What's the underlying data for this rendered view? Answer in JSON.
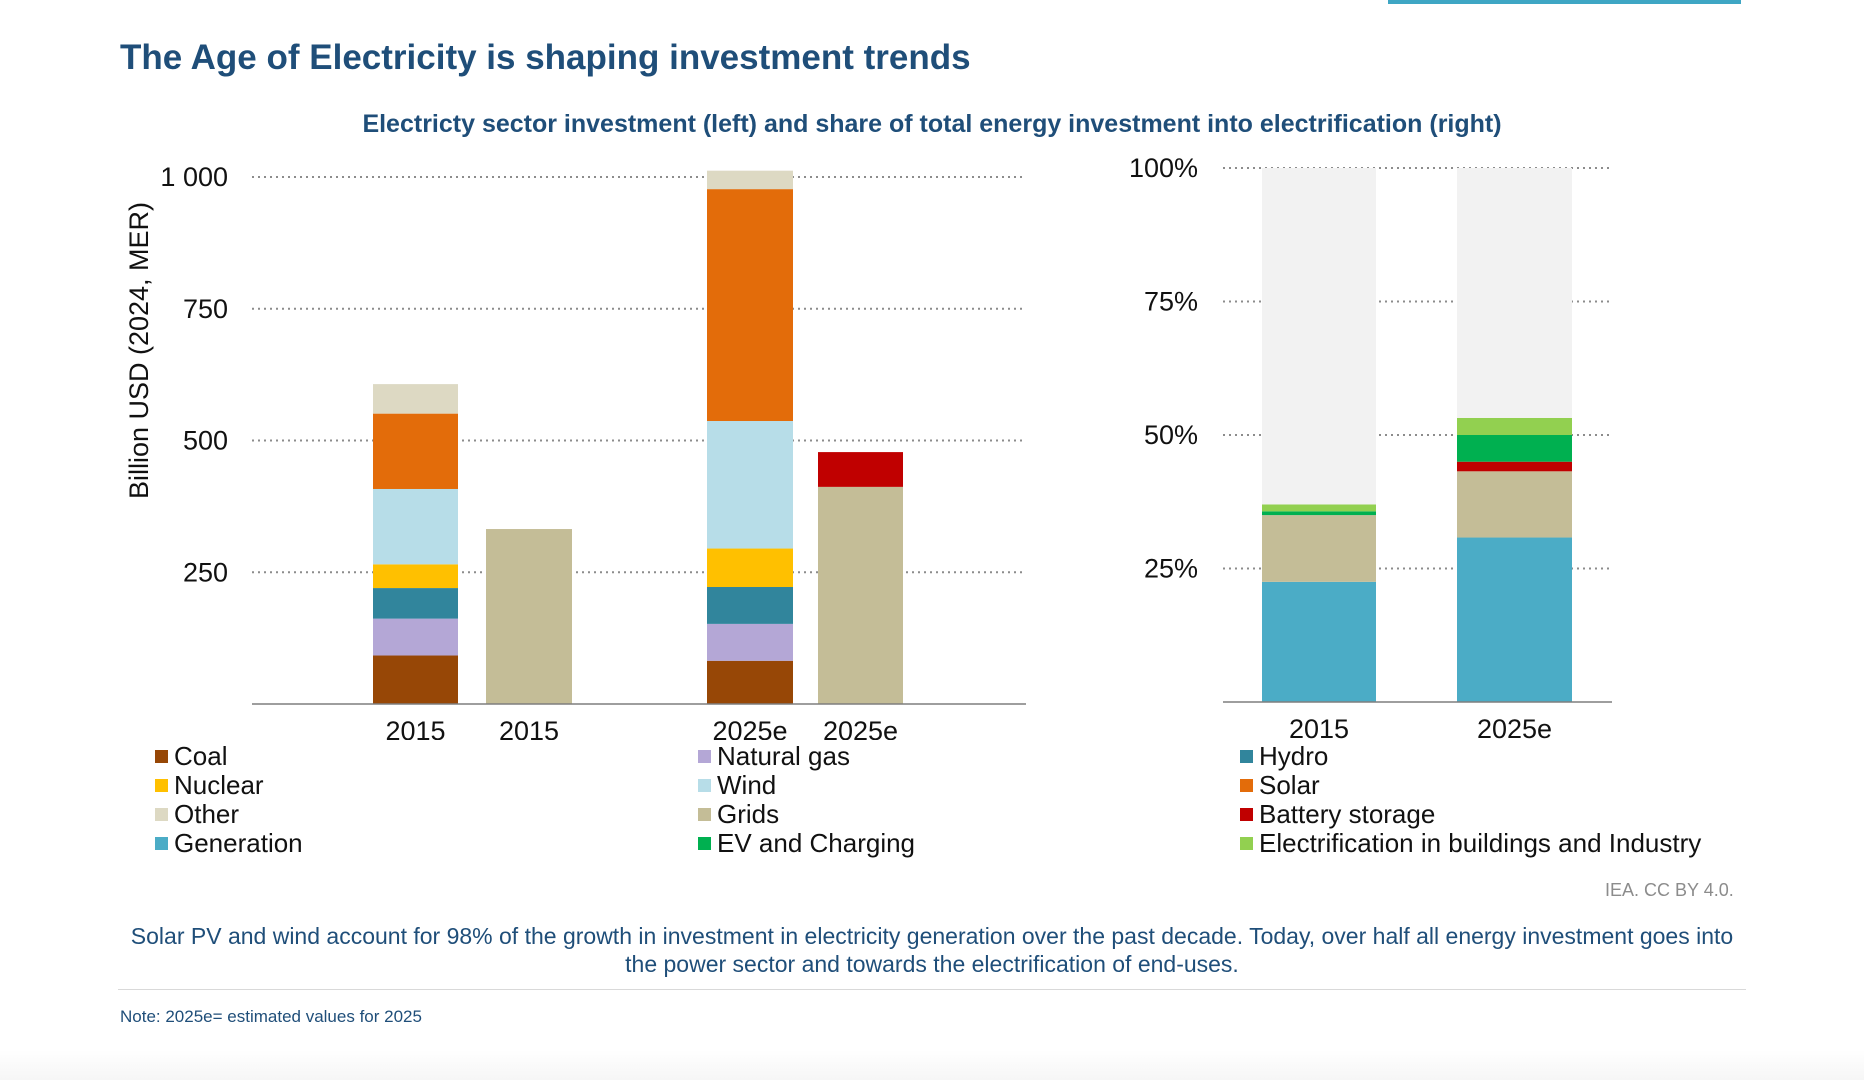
{
  "page": {
    "title": "The Age of Electricity is shaping investment trends",
    "subtitle": "Electricty sector investment (left) and share of total energy investment into electrification (right)",
    "credit": "IEA. CC BY 4.0.",
    "caption": "Solar PV and wind account for 98% of the growth in investment in electricity generation over the past decade. Today, over half all energy investment goes into the power sector and towards the electrification of end-uses.",
    "note": "Note: 2025e= estimated values for 2025"
  },
  "colors": {
    "Coal": "#974706",
    "Natural gas": "#b4a7d6",
    "Hydro": "#31859c",
    "Nuclear": "#ffc000",
    "Wind": "#b7dde8",
    "Solar": "#e36c0a",
    "Other": "#ddd9c3",
    "Grids": "#c4bd97",
    "Battery storage": "#c00000",
    "Generation": "#4bacc6",
    "EV and Charging": "#00b050",
    "Electrification in buildings and Industry": "#92d050",
    "Remainder": "#f2f2f2",
    "grid": "#8c8c8c",
    "title": "#1f4e79"
  },
  "legend": [
    {
      "label": "Coal"
    },
    {
      "label": "Natural gas"
    },
    {
      "label": "Hydro"
    },
    {
      "label": "Nuclear"
    },
    {
      "label": "Wind"
    },
    {
      "label": "Solar"
    },
    {
      "label": "Other"
    },
    {
      "label": "Grids"
    },
    {
      "label": "Battery storage"
    },
    {
      "label": "Generation"
    },
    {
      "label": "EV and Charging"
    },
    {
      "label": "Electrification in buildings and Industry"
    }
  ],
  "chart_data": [
    {
      "type": "bar",
      "stacked": true,
      "title": "Electricity sector investment",
      "ylabel": "Billion USD (2024, MER)",
      "xlabel": "",
      "ylim": [
        0,
        1000
      ],
      "yticks": [
        250,
        500,
        750,
        1000
      ],
      "ytick_labels": [
        "250",
        "500",
        "750",
        "1 000"
      ],
      "grid": true,
      "bars": [
        {
          "category": "2015",
          "segments": [
            {
              "name": "Coal",
              "value": 92
            },
            {
              "name": "Natural gas",
              "value": 70
            },
            {
              "name": "Hydro",
              "value": 58
            },
            {
              "name": "Nuclear",
              "value": 45
            },
            {
              "name": "Wind",
              "value": 143
            },
            {
              "name": "Solar",
              "value": 143
            },
            {
              "name": "Other",
              "value": 56
            }
          ]
        },
        {
          "category": "2015",
          "segments": [
            {
              "name": "Grids",
              "value": 332
            }
          ]
        },
        {
          "category": "2025e",
          "segments": [
            {
              "name": "Coal",
              "value": 82
            },
            {
              "name": "Natural gas",
              "value": 70
            },
            {
              "name": "Hydro",
              "value": 70
            },
            {
              "name": "Nuclear",
              "value": 73
            },
            {
              "name": "Wind",
              "value": 242
            },
            {
              "name": "Solar",
              "value": 440
            },
            {
              "name": "Other",
              "value": 35
            }
          ]
        },
        {
          "category": "2025e",
          "segments": [
            {
              "name": "Grids",
              "value": 412
            },
            {
              "name": "Battery storage",
              "value": 66
            }
          ]
        }
      ]
    },
    {
      "type": "bar",
      "stacked": true,
      "title": "Share of total energy investment into electrification",
      "ylabel": "",
      "ylim": [
        0,
        100
      ],
      "yticks": [
        25,
        50,
        75,
        100
      ],
      "ytick_labels": [
        "25%",
        "50%",
        "75%",
        "100%"
      ],
      "grid": true,
      "bars": [
        {
          "category": "2015",
          "segments": [
            {
              "name": "Generation",
              "value": 22.5
            },
            {
              "name": "Grids",
              "value": 12.5
            },
            {
              "name": "EV and Charging",
              "value": 0.7
            },
            {
              "name": "Electrification in buildings and Industry",
              "value": 1.3
            },
            {
              "name": "Remainder",
              "value": 63.0
            }
          ]
        },
        {
          "category": "2025e",
          "segments": [
            {
              "name": "Generation",
              "value": 30.8
            },
            {
              "name": "Grids",
              "value": 12.4
            },
            {
              "name": "Battery storage",
              "value": 1.8
            },
            {
              "name": "EV and Charging",
              "value": 5.0
            },
            {
              "name": "Electrification in buildings and Industry",
              "value": 3.2
            },
            {
              "name": "Remainder",
              "value": 46.8
            }
          ]
        }
      ]
    }
  ]
}
